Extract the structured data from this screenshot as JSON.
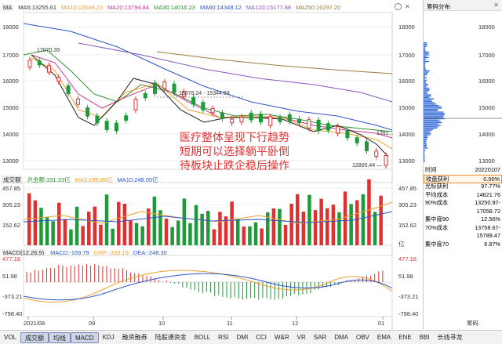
{
  "legend_ma": [
    {
      "label": "MA",
      "color": "#333333"
    },
    {
      "label": "MA5:13255.61",
      "color": "#333333"
    },
    {
      "label": "MA10:13549.23",
      "color": "#f0a030"
    },
    {
      "label": "MA20:13794.84",
      "color": "#c83a8c"
    },
    {
      "label": "MA30:14016.23",
      "color": "#2f8f2f"
    },
    {
      "label": "MA60:14348.12",
      "color": "#2c55c6"
    },
    {
      "label": "MA120:15177.88",
      "color": "#8a55c0"
    },
    {
      "label": "MA250:16297.20",
      "color": "#9c7a46"
    }
  ],
  "legend_vol": [
    {
      "label": "成交额",
      "color": "#333333"
    },
    {
      "label": "总金额:331.33亿",
      "color": "#2f8f2f"
    },
    {
      "label": "MA5:289.89亿",
      "color": "#f0a030"
    },
    {
      "label": "MA10:248.05亿",
      "color": "#2c55c6"
    }
  ],
  "legend_macd": [
    {
      "label": "MACD(12,26,9)",
      "color": "#333333"
    },
    {
      "label": "MACD:-169.79",
      "color": "#2c55c6"
    },
    {
      "label": "DIFF:-333.19",
      "color": "#f0a030"
    },
    {
      "label": "DEA:-248.30",
      "color": "#2c55c6"
    }
  ],
  "price_axis_labels": [
    "18000",
    "17000",
    "16000",
    "15000",
    "14000",
    "13000"
  ],
  "vol_axis_left": [
    "457.85",
    "305.23",
    "152.62"
  ],
  "vol_axis_right": [
    "457.85",
    "305.23",
    "152.62",
    "亿"
  ],
  "macd_axis_left": [
    "477.18",
    "51.98",
    "-373.21",
    "-798.40"
  ],
  "macd_axis_right": [
    "477.18",
    "51.98",
    "-373.21",
    "-798.40"
  ],
  "date_labels": [
    "2021/08",
    "09",
    "10",
    "11",
    "12",
    "01"
  ],
  "annotations": {
    "high": "17070.39",
    "mid1": "15378.24",
    "mid2": "15344.53",
    "low": "12805.44",
    "right_price": "1391"
  },
  "overlay_text": [
    "医疗整体呈现下行趋势",
    "短期可以选择躺平卧倒",
    "待板块止跌企稳后操作"
  ],
  "chip_panel": {
    "title": "筹码分布",
    "axis": [
      "18000",
      "17000",
      "16000",
      "15000",
      "14000",
      "13000"
    ],
    "rows": [
      {
        "label": "时间",
        "value": "20220107"
      },
      {
        "label": "收盘获利",
        "value": "0.00%",
        "highlight": true
      },
      {
        "label": "光标获利",
        "value": "97.77%"
      },
      {
        "label": "平均成本",
        "value": "14621.76"
      },
      {
        "label": "90%成本",
        "value": "13250.97-"
      },
      {
        "label": "",
        "value": "17058.72"
      },
      {
        "label": "集中度90",
        "value": "12.56%"
      },
      {
        "label": "70%成本",
        "value": "13758.67-"
      },
      {
        "label": "",
        "value": "15789.47"
      },
      {
        "label": "集中度70",
        "value": "6.87%"
      }
    ]
  },
  "tabs": [
    "VOL",
    "成交额",
    "均线",
    "MACD",
    "KDJ",
    "融资融券",
    "陆股通资金",
    "BOLL",
    "RSI",
    "DMI",
    "CCI",
    "W&R",
    "VR",
    "SAR",
    "DMA",
    "OBV",
    "EMA",
    "ENE",
    "BBI",
    "长线寻龙"
  ],
  "active_tabs": [
    "成交额",
    "均线",
    "MACD"
  ],
  "corner_label": "筹码"
}
